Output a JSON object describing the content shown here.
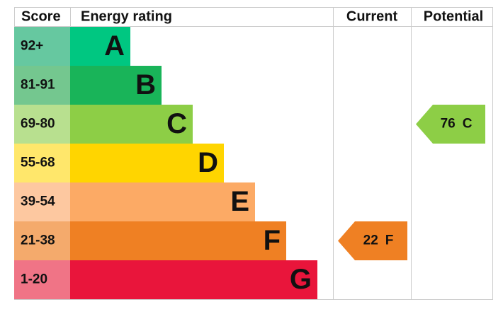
{
  "chart_data": {
    "type": "epc",
    "headers": [
      "Score",
      "Energy rating",
      "Current",
      "Potential"
    ],
    "bands": [
      {
        "score": "92+",
        "rating": "A",
        "color": "#00c781",
        "score_color": "#66c8a0"
      },
      {
        "score": "81-91",
        "rating": "B",
        "color": "#19b459",
        "score_color": "#74c78f"
      },
      {
        "score": "69-80",
        "rating": "C",
        "color": "#8dce46",
        "score_color": "#b8e08f"
      },
      {
        "score": "55-68",
        "rating": "D",
        "color": "#ffd500",
        "score_color": "#ffe76b"
      },
      {
        "score": "39-54",
        "rating": "E",
        "color": "#fcaa65",
        "score_color": "#fdc8a0"
      },
      {
        "score": "21-38",
        "rating": "F",
        "color": "#ef8023",
        "score_color": "#f4aa6c"
      },
      {
        "score": "1-20",
        "rating": "G",
        "color": "#e9153b",
        "score_color": "#f07486"
      }
    ],
    "current": {
      "value": 22,
      "rating": "F"
    },
    "potential": {
      "value": 76,
      "rating": "C"
    }
  }
}
